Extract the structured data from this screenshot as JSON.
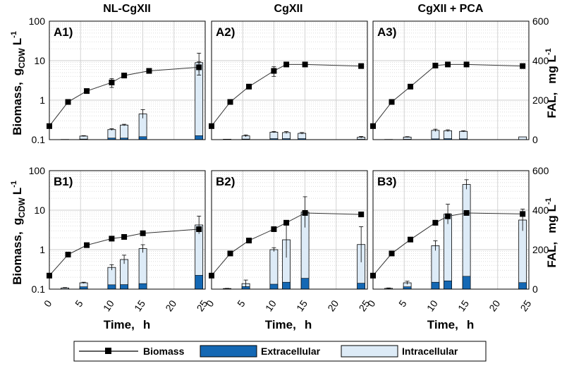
{
  "column_titles": [
    "NL-CgXII",
    "CgXII",
    "CgXII + PCA"
  ],
  "y_left_label": "Biomass,",
  "y_left_unit_main": "g",
  "y_left_unit_sub": "CDW",
  "y_left_unit_tail": "L",
  "y_left_unit_sup": "-1",
  "y_right_label": "FAL,",
  "y_right_unit": "mg L",
  "y_right_unit_sup": "-1",
  "x_label": "Time,",
  "x_unit": "h",
  "x_ticks": [
    "0",
    "5",
    "10",
    "15",
    "20",
    "25"
  ],
  "y_left_ticks": [
    "0.1",
    "1",
    "10",
    "100"
  ],
  "y_right_ticks": [
    "0",
    "200",
    "400",
    "600"
  ],
  "legend": {
    "biomass": "Biomass",
    "extracellular": "Extracellular",
    "intracellular": "Intracellular"
  },
  "colors": {
    "extracellular": "#1468b4",
    "intracellular": "#ddebf7",
    "biomass": "#000000",
    "grid": "#bdbdbd"
  },
  "chart_data": [
    {
      "panel": "A1)",
      "type": "bar+line",
      "condition": "NL-CgXII",
      "ylim_left": [
        0.1,
        100
      ],
      "ylim_right": [
        0,
        600
      ],
      "xlim": [
        0,
        25
      ],
      "biomass_time": [
        0,
        3,
        6,
        10,
        12,
        16,
        24
      ],
      "biomass": [
        0.22,
        0.9,
        1.7,
        2.8,
        4.2,
        5.5,
        6.8
      ],
      "biomass_err": [
        0,
        0,
        0,
        0.7,
        0,
        0,
        2.5
      ],
      "bar_time": [
        2.5,
        5.5,
        10,
        12,
        15,
        24
      ],
      "extracellular": [
        0,
        3,
        8,
        8,
        15,
        20
      ],
      "total": [
        1,
        18,
        51,
        74,
        130,
        390
      ],
      "total_err": [
        0,
        2,
        4,
        4,
        22,
        48
      ]
    },
    {
      "panel": "A2)",
      "type": "bar+line",
      "condition": "CgXII",
      "ylim_left": [
        0.1,
        100
      ],
      "ylim_right": [
        0,
        600
      ],
      "xlim": [
        0,
        25
      ],
      "biomass_time": [
        0,
        3,
        6,
        10,
        12,
        15,
        24
      ],
      "biomass": [
        0.22,
        0.9,
        2.2,
        5.5,
        8,
        8,
        7.3
      ],
      "biomass_err": [
        0,
        0,
        0,
        1.5,
        0,
        0,
        0
      ],
      "bar_time": [
        2.5,
        5.5,
        10,
        12,
        14.5,
        24
      ],
      "extracellular": [
        0,
        3,
        5,
        5,
        5,
        2
      ],
      "total": [
        2,
        19,
        38,
        36,
        32,
        12
      ],
      "total_err": [
        0,
        5,
        3,
        5,
        4,
        4
      ]
    },
    {
      "panel": "A3)",
      "type": "bar+line",
      "condition": "CgXII + PCA",
      "ylim_left": [
        0.1,
        100
      ],
      "ylim_right": [
        0,
        600
      ],
      "xlim": [
        0,
        25
      ],
      "biomass_time": [
        0,
        3,
        6,
        10,
        12,
        15,
        24
      ],
      "biomass": [
        0.22,
        0.9,
        2.2,
        7.5,
        8,
        8,
        7.3
      ],
      "biomass_err": [
        0,
        0,
        0,
        0,
        0,
        0,
        0
      ],
      "bar_time": [
        2.5,
        5.5,
        10,
        12,
        14.5,
        24
      ],
      "extracellular": [
        0,
        2,
        4,
        5,
        4,
        0
      ],
      "total": [
        1,
        13,
        47,
        45,
        42,
        14
      ],
      "total_err": [
        0,
        2,
        6,
        5,
        3,
        0
      ]
    },
    {
      "panel": "B1)",
      "type": "bar+line",
      "condition": "NL-CgXII",
      "ylim_left": [
        0.1,
        100
      ],
      "ylim_right": [
        0,
        600
      ],
      "xlim": [
        0,
        25
      ],
      "biomass_time": [
        0,
        3,
        6,
        10,
        12,
        15,
        24
      ],
      "biomass": [
        0.22,
        0.75,
        1.3,
        1.9,
        2.1,
        2.6,
        3.3
      ],
      "biomass_err": [
        0,
        0,
        0,
        0,
        0,
        0,
        0
      ],
      "bar_time": [
        2.5,
        5.5,
        10,
        12,
        15,
        24
      ],
      "extracellular": [
        0,
        12,
        22,
        23,
        28,
        70
      ],
      "total": [
        6,
        32,
        110,
        150,
        205,
        325
      ],
      "total_err": [
        2,
        3,
        14,
        22,
        20,
        45
      ]
    },
    {
      "panel": "B2)",
      "type": "bar+line",
      "condition": "CgXII",
      "ylim_left": [
        0.1,
        100
      ],
      "ylim_right": [
        0,
        600
      ],
      "xlim": [
        0,
        25
      ],
      "biomass_time": [
        0,
        3,
        6,
        10,
        12,
        15,
        24
      ],
      "biomass": [
        0.22,
        0.8,
        1.7,
        3.3,
        4.8,
        8.5,
        7.8
      ],
      "biomass_err": [
        0,
        0,
        0,
        0,
        0,
        0,
        0
      ],
      "bar_time": [
        2.5,
        5.5,
        10,
        12,
        15,
        24
      ],
      "extracellular": [
        0,
        13,
        25,
        35,
        55,
        30
      ],
      "total": [
        3,
        28,
        200,
        250,
        390,
        226
      ],
      "total_err": [
        1,
        18,
        10,
        90,
        78,
        90
      ]
    },
    {
      "panel": "B3)",
      "type": "bar+line",
      "condition": "CgXII + PCA",
      "ylim_left": [
        0.1,
        100
      ],
      "ylim_right": [
        0,
        600
      ],
      "xlim": [
        0,
        25
      ],
      "biomass_time": [
        0,
        3,
        6,
        10,
        12,
        15,
        24
      ],
      "biomass": [
        0.22,
        0.8,
        1.8,
        4.8,
        7,
        8.5,
        8
      ],
      "biomass_err": [
        0,
        0,
        0,
        0,
        0,
        0,
        0
      ],
      "bar_time": [
        2.5,
        5.5,
        10,
        12,
        15,
        24
      ],
      "extracellular": [
        0,
        12,
        35,
        42,
        65,
        33
      ],
      "total": [
        4,
        32,
        220,
        380,
        530,
        350
      ],
      "total_err": [
        2,
        8,
        25,
        50,
        24,
        55
      ]
    }
  ]
}
